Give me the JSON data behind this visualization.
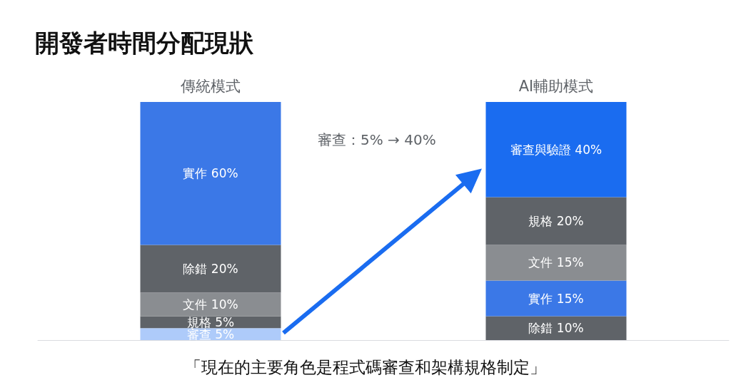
{
  "chart_data": {
    "type": "bar",
    "stacked": true,
    "title": "開發者時間分配現狀",
    "categories": [
      "傳統模式",
      "AI輔助模式"
    ],
    "series": [
      {
        "color": "#aecbfa",
        "values": [
          5,
          null
        ],
        "value_labels": [
          "審查 5%",
          null
        ]
      },
      {
        "color": "#5f6368",
        "values": [
          5,
          null
        ],
        "value_labels": [
          "規格 5%",
          null
        ]
      },
      {
        "color": "#8a8d91",
        "values": [
          10,
          null
        ],
        "value_labels": [
          "文件 10%",
          null
        ]
      },
      {
        "color": "#5f6368",
        "values": [
          20,
          null
        ],
        "value_labels": [
          "除錯 20%",
          null
        ]
      },
      {
        "color": "#3b78e7",
        "values": [
          60,
          null
        ],
        "value_labels": [
          "實作 60%",
          null
        ]
      },
      {
        "color": "#5f6368",
        "values": [
          null,
          10
        ],
        "value_labels": [
          null,
          "除錯 10%"
        ]
      },
      {
        "color": "#3b78e7",
        "values": [
          null,
          15
        ],
        "value_labels": [
          null,
          "實作 15%"
        ]
      },
      {
        "color": "#8a8d91",
        "values": [
          null,
          15
        ],
        "value_labels": [
          null,
          "文件 15%"
        ]
      },
      {
        "color": "#5f6368",
        "values": [
          null,
          20
        ],
        "value_labels": [
          null,
          "規格 20%"
        ]
      },
      {
        "color": "#1a6cf0",
        "values": [
          null,
          40
        ],
        "value_labels": [
          null,
          "審查與驗證 40%"
        ]
      }
    ],
    "annotations": [
      "審查：5% → 40%",
      "「現在的主要角色是程式碼審查和架構規格制定」"
    ]
  }
}
